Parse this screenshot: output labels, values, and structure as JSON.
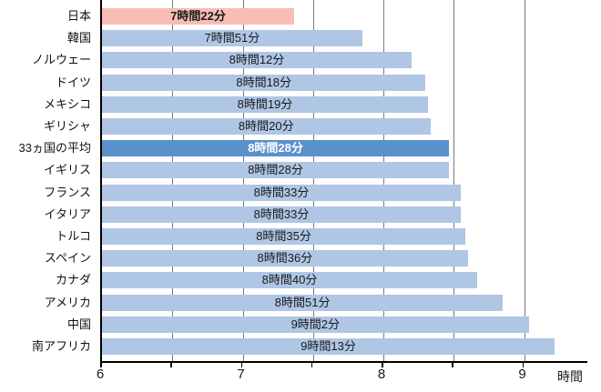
{
  "chart_data": {
    "type": "bar",
    "orientation": "horizontal",
    "title": "",
    "xlabel": "時間",
    "ylabel": "",
    "xlim": [
      6,
      9.45
    ],
    "xticks_major": [
      6,
      7,
      8,
      9
    ],
    "xtick_labels": [
      "6",
      "7",
      "8",
      "9"
    ],
    "xticks_minor_step": 0.5,
    "grid": "vertical lines every 0.5 hours, drawn behind opaque bars (visible only in row gaps)",
    "legend": "none",
    "rows": [
      {
        "category": "日本",
        "hours": 7,
        "minutes": 22,
        "value_hours": 7.3667,
        "label": "7時間22分",
        "style": "japan"
      },
      {
        "category": "韓国",
        "hours": 7,
        "minutes": 51,
        "value_hours": 7.85,
        "label": "7時間51分",
        "style": "default"
      },
      {
        "category": "ノルウェー",
        "hours": 8,
        "minutes": 12,
        "value_hours": 8.2,
        "label": "8時間12分",
        "style": "default"
      },
      {
        "category": "ドイツ",
        "hours": 8,
        "minutes": 18,
        "value_hours": 8.3,
        "label": "8時間18分",
        "style": "default"
      },
      {
        "category": "メキシコ",
        "hours": 8,
        "minutes": 19,
        "value_hours": 8.3167,
        "label": "8時間19分",
        "style": "default"
      },
      {
        "category": "ギリシャ",
        "hours": 8,
        "minutes": 20,
        "value_hours": 8.3333,
        "label": "8時間20分",
        "style": "default"
      },
      {
        "category": "33ヵ国の平均",
        "hours": 8,
        "minutes": 28,
        "value_hours": 8.4667,
        "label": "8時間28分",
        "style": "average"
      },
      {
        "category": "イギリス",
        "hours": 8,
        "minutes": 28,
        "value_hours": 8.4667,
        "label": "8時間28分",
        "style": "default"
      },
      {
        "category": "フランス",
        "hours": 8,
        "minutes": 33,
        "value_hours": 8.55,
        "label": "8時間33分",
        "style": "default"
      },
      {
        "category": "イタリア",
        "hours": 8,
        "minutes": 33,
        "value_hours": 8.55,
        "label": "8時間33分",
        "style": "default"
      },
      {
        "category": "トルコ",
        "hours": 8,
        "minutes": 35,
        "value_hours": 8.5833,
        "label": "8時間35分",
        "style": "default"
      },
      {
        "category": "スペイン",
        "hours": 8,
        "minutes": 36,
        "value_hours": 8.6,
        "label": "8時間36分",
        "style": "default"
      },
      {
        "category": "カナダ",
        "hours": 8,
        "minutes": 40,
        "value_hours": 8.6667,
        "label": "8時間40分",
        "style": "default"
      },
      {
        "category": "アメリカ",
        "hours": 8,
        "minutes": 51,
        "value_hours": 8.85,
        "label": "8時間51分",
        "style": "default"
      },
      {
        "category": "中国",
        "hours": 9,
        "minutes": 2,
        "value_hours": 9.0333,
        "label": "9時間2分",
        "style": "default"
      },
      {
        "category": "南アフリカ",
        "hours": 9,
        "minutes": 13,
        "value_hours": 9.2167,
        "label": "9時間13分",
        "style": "default"
      }
    ],
    "colors": {
      "bar_default": "#AFC6E4",
      "bar_japan": "#F8BDB4",
      "bar_average": "#5991CB",
      "text_default": "#1a1a1a",
      "text_japan": "#1a1a1a",
      "text_average": "#ffffff",
      "gridline": "#7a7a7a",
      "axis": "#000000"
    }
  }
}
